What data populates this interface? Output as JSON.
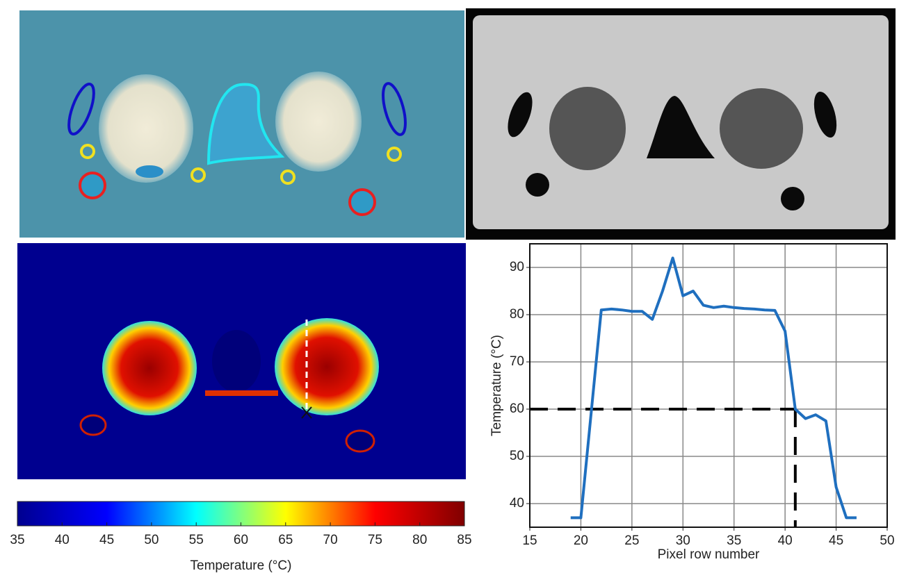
{
  "chart_data": [
    {
      "type": "colorbar",
      "xlabel": "Temperature (°C)",
      "xlim": [
        35,
        85
      ],
      "xticks": [
        35,
        40,
        45,
        50,
        55,
        60,
        65,
        70,
        75,
        80,
        85
      ],
      "colors": [
        "#00008f",
        "#0000ff",
        "#00ffff",
        "#ffff00",
        "#ff0000",
        "#800000"
      ]
    },
    {
      "type": "line",
      "xlabel": "Pixel row number",
      "ylabel": "Temperature (°C)",
      "x": [
        19,
        20,
        21,
        22,
        23,
        24,
        25,
        26,
        27,
        28,
        29,
        30,
        31,
        32,
        33,
        34,
        35,
        36,
        37,
        38,
        39,
        40,
        41,
        42,
        43,
        44,
        45,
        46,
        47
      ],
      "values": [
        37,
        37,
        59,
        81,
        81.2,
        81,
        80.7,
        80.7,
        79,
        85,
        92,
        84,
        85,
        82,
        81.5,
        81.8,
        81.5,
        81.3,
        81.2,
        81,
        80.9,
        76.5,
        60,
        58,
        58.8,
        57.5,
        43.5,
        37,
        37
      ],
      "color": "#1f6fbf",
      "grid": true,
      "threshold_y": 60,
      "threshold_x": 41,
      "xlim": [
        15,
        50
      ],
      "xticks": [
        15,
        20,
        25,
        30,
        35,
        40,
        45,
        50
      ],
      "ylim": [
        35,
        95
      ],
      "yticks": [
        40,
        50,
        60,
        70,
        80,
        90
      ]
    }
  ]
}
